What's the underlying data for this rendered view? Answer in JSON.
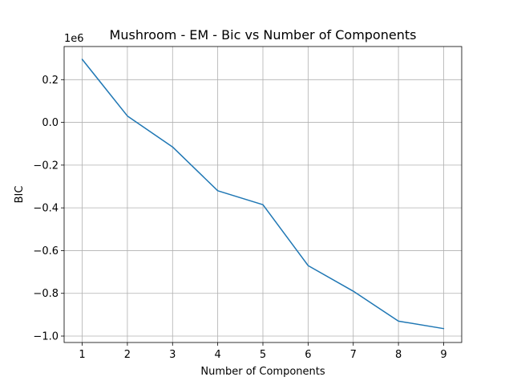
{
  "chart_data": {
    "type": "line",
    "title": "Mushroom - EM - Bic vs Number of Components",
    "xlabel": "Number of Components",
    "ylabel": "BIC",
    "y_offset_label": "1e6",
    "x": [
      1,
      2,
      3,
      4,
      5,
      6,
      7,
      8,
      9
    ],
    "series": [
      {
        "values": [
          295000,
          30000,
          -115000,
          -320000,
          -385000,
          -670000,
          -790000,
          -930000,
          -965000
        ],
        "color": "#1f77b4"
      }
    ],
    "xlim": [
      0.6,
      9.4
    ],
    "ylim": [
      -1030000,
      355000
    ],
    "x_ticks": [
      1,
      2,
      3,
      4,
      5,
      6,
      7,
      8,
      9
    ],
    "x_tick_labels": [
      "1",
      "2",
      "3",
      "4",
      "5",
      "6",
      "7",
      "8",
      "9"
    ],
    "y_ticks": [
      -1000000,
      -800000,
      -600000,
      -400000,
      -200000,
      0,
      200000
    ],
    "y_tick_labels": [
      "−1.0",
      "−0.8",
      "−0.6",
      "−0.4",
      "−0.2",
      "0.0",
      "0.2"
    ],
    "grid": true
  }
}
